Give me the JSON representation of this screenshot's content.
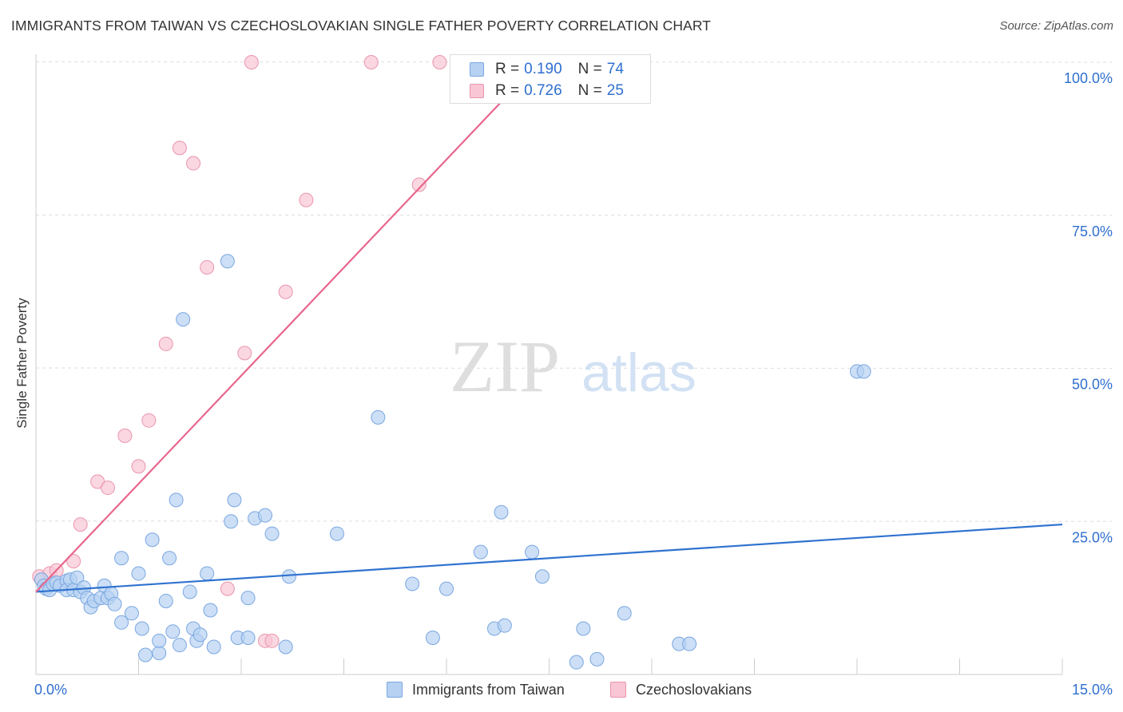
{
  "title": "IMMIGRANTS FROM TAIWAN VS CZECHOSLOVAKIAN SINGLE FATHER POVERTY CORRELATION CHART",
  "source": "Source: ZipAtlas.com",
  "watermark": {
    "zip": "ZIP",
    "atlas": "atlas"
  },
  "legend": {
    "series1": {
      "r_label": "R =",
      "r_value": "0.190",
      "n_label": "N =",
      "n_value": "74"
    },
    "series2": {
      "r_label": "R =",
      "r_value": "0.726",
      "n_label": "N =",
      "n_value": "25"
    }
  },
  "bottom_legend": {
    "series1": "Immigrants from Taiwan",
    "series2": "Czechoslovakians"
  },
  "colors": {
    "blue_fill": "#b7d1f2",
    "blue_stroke": "#7aa7e0",
    "blue_line": "#2f72d0",
    "pink_fill": "#f8c6d4",
    "pink_stroke": "#ea95ae",
    "pink_line": "#e8668c",
    "axis_label": "#2f6fcf",
    "grid": "#dddddd"
  },
  "chart_data": {
    "type": "scatter",
    "title": "IMMIGRANTS FROM TAIWAN VS CZECHOSLOVAKIAN SINGLE FATHER POVERTY CORRELATION CHART",
    "xlabel": "",
    "ylabel": "Single Father Poverty",
    "xlim": [
      0,
      15
    ],
    "ylim": [
      0,
      100
    ],
    "x_ticks": [
      {
        "value": 0,
        "label": "0.0%"
      },
      {
        "value": 15,
        "label": "15.0%"
      }
    ],
    "y_ticks": [
      {
        "value": 25,
        "label": "25.0%"
      },
      {
        "value": 50,
        "label": "50.0%"
      },
      {
        "value": 75,
        "label": "75.0%"
      },
      {
        "value": 100,
        "label": "100.0%"
      }
    ],
    "grid": true,
    "legend_position": "top-center",
    "series": [
      {
        "name": "Immigrants from Taiwan",
        "color": "#b7d1f2",
        "trend": {
          "x": [
            0.0,
            15.0
          ],
          "y": [
            13.5,
            24.5
          ]
        },
        "points": [
          [
            0.08,
            15.5
          ],
          [
            0.12,
            14.5
          ],
          [
            0.15,
            14.0
          ],
          [
            0.2,
            13.8
          ],
          [
            0.25,
            14.8
          ],
          [
            0.3,
            15.0
          ],
          [
            0.35,
            14.5
          ],
          [
            0.45,
            15.3
          ],
          [
            0.45,
            13.8
          ],
          [
            0.5,
            15.5
          ],
          [
            0.55,
            13.8
          ],
          [
            0.6,
            15.8
          ],
          [
            0.65,
            13.5
          ],
          [
            0.7,
            14.2
          ],
          [
            0.75,
            12.5
          ],
          [
            0.8,
            11.0
          ],
          [
            0.85,
            12.0
          ],
          [
            0.95,
            12.5
          ],
          [
            1.0,
            14.5
          ],
          [
            1.05,
            12.5
          ],
          [
            1.1,
            13.2
          ],
          [
            1.15,
            11.5
          ],
          [
            1.25,
            19.0
          ],
          [
            1.25,
            8.5
          ],
          [
            1.4,
            10.0
          ],
          [
            1.5,
            16.5
          ],
          [
            1.55,
            7.5
          ],
          [
            1.6,
            3.2
          ],
          [
            1.7,
            22.0
          ],
          [
            1.8,
            3.5
          ],
          [
            1.8,
            5.5
          ],
          [
            1.9,
            12.0
          ],
          [
            1.95,
            19.0
          ],
          [
            2.0,
            7.0
          ],
          [
            2.05,
            28.5
          ],
          [
            2.1,
            4.8
          ],
          [
            2.15,
            58.0
          ],
          [
            2.25,
            13.5
          ],
          [
            2.3,
            7.5
          ],
          [
            2.35,
            5.5
          ],
          [
            2.4,
            6.5
          ],
          [
            2.5,
            16.5
          ],
          [
            2.55,
            10.5
          ],
          [
            2.6,
            4.5
          ],
          [
            2.8,
            67.5
          ],
          [
            2.85,
            25.0
          ],
          [
            2.9,
            28.5
          ],
          [
            2.95,
            6.0
          ],
          [
            3.1,
            12.5
          ],
          [
            3.1,
            6.0
          ],
          [
            3.2,
            25.5
          ],
          [
            3.35,
            26.0
          ],
          [
            3.45,
            23.0
          ],
          [
            3.65,
            4.5
          ],
          [
            3.7,
            16.0
          ],
          [
            4.4,
            23.0
          ],
          [
            5.0,
            42.0
          ],
          [
            5.5,
            14.8
          ],
          [
            5.8,
            6.0
          ],
          [
            6.0,
            14.0
          ],
          [
            6.5,
            20.0
          ],
          [
            6.7,
            7.5
          ],
          [
            6.8,
            26.5
          ],
          [
            6.85,
            8.0
          ],
          [
            7.25,
            20.0
          ],
          [
            7.4,
            16.0
          ],
          [
            7.9,
            2.0
          ],
          [
            8.0,
            7.5
          ],
          [
            8.2,
            2.5
          ],
          [
            8.6,
            10.0
          ],
          [
            9.4,
            5.0
          ],
          [
            9.55,
            5.0
          ],
          [
            12.0,
            49.5
          ],
          [
            12.1,
            49.5
          ]
        ]
      },
      {
        "name": "Czechoslovakians",
        "color": "#f8c6d4",
        "trend": {
          "x": [
            0.0,
            7.35
          ],
          "y": [
            13.5,
            100.0
          ]
        },
        "points": [
          [
            0.05,
            16.0
          ],
          [
            0.2,
            16.5
          ],
          [
            0.3,
            17.0
          ],
          [
            0.55,
            18.5
          ],
          [
            0.65,
            24.5
          ],
          [
            0.9,
            31.5
          ],
          [
            1.05,
            30.5
          ],
          [
            1.3,
            39.0
          ],
          [
            1.5,
            34.0
          ],
          [
            1.65,
            41.5
          ],
          [
            1.9,
            54.0
          ],
          [
            2.1,
            86.0
          ],
          [
            2.3,
            83.5
          ],
          [
            2.5,
            66.5
          ],
          [
            2.8,
            14.0
          ],
          [
            3.05,
            52.5
          ],
          [
            3.15,
            100.0
          ],
          [
            3.35,
            5.5
          ],
          [
            3.45,
            5.5
          ],
          [
            3.65,
            62.5
          ],
          [
            3.95,
            77.5
          ],
          [
            4.9,
            100.0
          ],
          [
            5.6,
            80.0
          ],
          [
            5.9,
            100.0
          ],
          [
            7.25,
            100.0
          ]
        ]
      }
    ]
  }
}
